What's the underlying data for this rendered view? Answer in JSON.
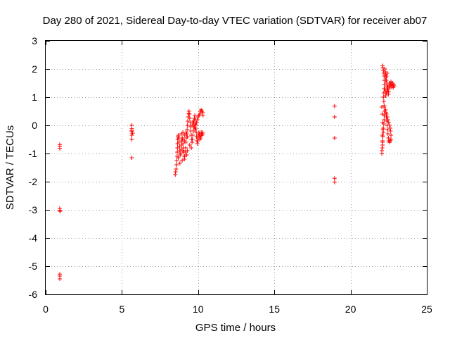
{
  "chart_data": {
    "type": "scatter",
    "title": "Day 280 of 2021, Sidereal Day-to-day VTEC variation (SDTVAR) for receiver ab07",
    "xlabel": "GPS time / hours",
    "ylabel": "SDTVAR / TECUs",
    "xlim": [
      0,
      25
    ],
    "ylim": [
      -6,
      3
    ],
    "xticks": [
      0,
      5,
      10,
      15,
      20,
      25
    ],
    "yticks": [
      -6,
      -5,
      -4,
      -3,
      -2,
      -1,
      0,
      1,
      2,
      3
    ],
    "xtick_labels": [
      "0",
      "5",
      "10",
      "15",
      "20",
      "25"
    ],
    "ytick_labels": [
      "-6",
      "-5",
      "-4",
      "-3",
      "-2",
      "-1",
      "0",
      "1",
      "2",
      "3"
    ],
    "grid": true,
    "marker": "+",
    "color": "#ff0000",
    "series": [
      {
        "name": "SDTVAR",
        "points": [
          [
            0.92,
            -0.68
          ],
          [
            0.92,
            -0.75
          ],
          [
            0.92,
            -0.82
          ],
          [
            0.92,
            -2.95
          ],
          [
            0.92,
            -3.02
          ],
          [
            0.95,
            -3.05
          ],
          [
            0.92,
            -5.28
          ],
          [
            0.92,
            -5.35
          ],
          [
            0.92,
            -5.45
          ],
          [
            5.65,
            0.0
          ],
          [
            5.65,
            -0.12
          ],
          [
            5.65,
            -0.18
          ],
          [
            5.65,
            -0.22
          ],
          [
            5.7,
            -0.28
          ],
          [
            5.65,
            -0.35
          ],
          [
            5.65,
            -0.5
          ],
          [
            5.65,
            -1.15
          ],
          [
            8.5,
            -1.75
          ],
          [
            8.52,
            -1.65
          ],
          [
            8.55,
            -1.55
          ],
          [
            8.58,
            -1.4
          ],
          [
            8.6,
            -1.25
          ],
          [
            8.62,
            -1.1
          ],
          [
            8.63,
            -0.95
          ],
          [
            8.64,
            -0.8
          ],
          [
            8.65,
            -0.65
          ],
          [
            8.66,
            -0.5
          ],
          [
            8.68,
            -0.4
          ],
          [
            8.7,
            -0.35
          ],
          [
            8.72,
            -0.45
          ],
          [
            8.75,
            -0.6
          ],
          [
            8.78,
            -0.75
          ],
          [
            8.8,
            -0.9
          ],
          [
            8.82,
            -1.05
          ],
          [
            8.85,
            -1.0
          ],
          [
            8.88,
            -0.85
          ],
          [
            8.9,
            -0.7
          ],
          [
            8.92,
            -0.55
          ],
          [
            8.95,
            -0.45
          ],
          [
            8.98,
            -0.5
          ],
          [
            9.0,
            -0.65
          ],
          [
            9.02,
            -0.8
          ],
          [
            9.05,
            -0.95
          ],
          [
            9.08,
            -1.1
          ],
          [
            9.1,
            -1.2
          ],
          [
            9.12,
            -1.1
          ],
          [
            9.15,
            -0.95
          ],
          [
            9.18,
            -0.8
          ],
          [
            9.2,
            -0.6
          ],
          [
            9.22,
            -0.45
          ],
          [
            9.25,
            -0.3
          ],
          [
            9.28,
            -0.15
          ],
          [
            9.3,
            0.0
          ],
          [
            9.32,
            0.15
          ],
          [
            9.35,
            0.3
          ],
          [
            9.38,
            0.42
          ],
          [
            9.4,
            0.5
          ],
          [
            9.42,
            0.4
          ],
          [
            9.45,
            0.25
          ],
          [
            9.48,
            0.1
          ],
          [
            9.5,
            -0.05
          ],
          [
            9.52,
            -0.2
          ],
          [
            9.55,
            -0.35
          ],
          [
            9.58,
            -0.5
          ],
          [
            9.6,
            -0.6
          ],
          [
            9.62,
            -0.5
          ],
          [
            9.65,
            -0.35
          ],
          [
            9.68,
            -0.2
          ],
          [
            9.7,
            -0.05
          ],
          [
            9.72,
            0.1
          ],
          [
            9.75,
            0.25
          ],
          [
            9.78,
            0.35
          ],
          [
            9.8,
            0.2
          ],
          [
            9.82,
            0.05
          ],
          [
            9.85,
            -0.1
          ],
          [
            9.88,
            -0.25
          ],
          [
            9.9,
            -0.4
          ],
          [
            9.92,
            -0.55
          ],
          [
            9.95,
            -0.65
          ],
          [
            9.98,
            -0.55
          ],
          [
            10.0,
            -0.45
          ],
          [
            10.02,
            -0.35
          ],
          [
            10.05,
            -0.25
          ],
          [
            10.08,
            -0.3
          ],
          [
            10.1,
            -0.4
          ],
          [
            10.12,
            -0.5
          ],
          [
            10.15,
            -0.45
          ],
          [
            10.18,
            -0.35
          ],
          [
            10.2,
            -0.25
          ],
          [
            10.22,
            -0.3
          ],
          [
            10.25,
            -0.35
          ],
          [
            10.28,
            -0.25
          ],
          [
            10.3,
            -0.3
          ],
          [
            9.6,
            0.0
          ],
          [
            9.65,
            0.1
          ],
          [
            9.7,
            0.15
          ],
          [
            9.75,
            -0.05
          ],
          [
            9.8,
            -0.15
          ],
          [
            9.85,
            0.0
          ],
          [
            9.9,
            0.1
          ],
          [
            9.95,
            0.2
          ],
          [
            10.0,
            0.3
          ],
          [
            10.05,
            0.35
          ],
          [
            10.1,
            0.4
          ],
          [
            10.15,
            0.5
          ],
          [
            10.2,
            0.55
          ],
          [
            10.25,
            0.5
          ],
          [
            10.3,
            0.45
          ],
          [
            10.32,
            0.35
          ],
          [
            8.9,
            -0.3
          ],
          [
            9.0,
            -0.25
          ],
          [
            9.1,
            -0.35
          ],
          [
            9.2,
            -0.25
          ],
          [
            9.3,
            -0.4
          ],
          [
            9.1,
            -0.55
          ],
          [
            9.0,
            -0.9
          ],
          [
            8.95,
            -1.25
          ],
          [
            8.8,
            -1.35
          ],
          [
            8.7,
            -1.15
          ],
          [
            9.25,
            -1.05
          ],
          [
            9.3,
            -0.9
          ],
          [
            9.45,
            -0.7
          ],
          [
            9.55,
            -0.8
          ],
          [
            18.95,
            0.68
          ],
          [
            18.95,
            0.3
          ],
          [
            18.95,
            -0.45
          ],
          [
            18.95,
            -1.88
          ],
          [
            18.95,
            -2.02
          ],
          [
            22.05,
            -1.0
          ],
          [
            22.05,
            -0.9
          ],
          [
            22.08,
            -0.8
          ],
          [
            22.1,
            -0.7
          ],
          [
            22.1,
            -0.55
          ],
          [
            22.12,
            -0.4
          ],
          [
            22.15,
            -0.25
          ],
          [
            22.15,
            -0.1
          ],
          [
            22.18,
            0.05
          ],
          [
            22.2,
            0.2
          ],
          [
            22.2,
            0.35
          ],
          [
            22.22,
            0.5
          ],
          [
            22.2,
            0.65
          ],
          [
            22.05,
            0.65
          ],
          [
            22.08,
            0.4
          ],
          [
            22.1,
            0.1
          ],
          [
            22.12,
            -0.15
          ],
          [
            22.08,
            -0.35
          ],
          [
            22.1,
            -0.6
          ],
          [
            22.1,
            2.12
          ],
          [
            22.12,
            2.05
          ],
          [
            22.15,
            1.95
          ],
          [
            22.18,
            1.85
          ],
          [
            22.2,
            1.75
          ],
          [
            22.2,
            1.6
          ],
          [
            22.22,
            1.45
          ],
          [
            22.2,
            1.3
          ],
          [
            22.18,
            1.15
          ],
          [
            22.15,
            1.0
          ],
          [
            22.18,
            0.85
          ],
          [
            22.2,
            0.7
          ],
          [
            22.25,
            2.0
          ],
          [
            22.28,
            1.9
          ],
          [
            22.3,
            1.8
          ],
          [
            22.32,
            1.7
          ],
          [
            22.35,
            1.6
          ],
          [
            22.38,
            1.5
          ],
          [
            22.4,
            1.4
          ],
          [
            22.42,
            1.3
          ],
          [
            22.45,
            1.2
          ],
          [
            22.48,
            1.1
          ],
          [
            22.5,
            1.2
          ],
          [
            22.52,
            1.35
          ],
          [
            22.55,
            1.5
          ],
          [
            22.58,
            1.45
          ],
          [
            22.6,
            1.35
          ],
          [
            22.62,
            1.45
          ],
          [
            22.65,
            1.55
          ],
          [
            22.68,
            1.45
          ],
          [
            22.7,
            1.35
          ],
          [
            22.72,
            1.4
          ],
          [
            22.75,
            1.5
          ],
          [
            22.78,
            1.4
          ],
          [
            22.8,
            1.35
          ],
          [
            22.82,
            1.45
          ],
          [
            22.85,
            1.4
          ],
          [
            22.3,
            0.55
          ],
          [
            22.32,
            0.45
          ],
          [
            22.35,
            0.3
          ],
          [
            22.38,
            0.15
          ],
          [
            22.4,
            0.0
          ],
          [
            22.42,
            -0.15
          ],
          [
            22.45,
            -0.3
          ],
          [
            22.48,
            -0.45
          ],
          [
            22.5,
            -0.55
          ],
          [
            22.55,
            -0.6
          ],
          [
            22.6,
            -0.55
          ],
          [
            22.65,
            -0.5
          ],
          [
            22.35,
            0.4
          ],
          [
            22.4,
            0.3
          ],
          [
            22.45,
            0.2
          ],
          [
            22.5,
            0.1
          ],
          [
            22.55,
            0.0
          ],
          [
            22.6,
            -0.1
          ],
          [
            22.62,
            -0.2
          ],
          [
            22.65,
            -0.35
          ],
          [
            22.25,
            1.3
          ],
          [
            22.28,
            1.2
          ],
          [
            22.3,
            1.05
          ],
          [
            22.35,
            1.15
          ],
          [
            22.4,
            1.25
          ],
          [
            22.45,
            1.35
          ],
          [
            22.3,
            1.6
          ],
          [
            22.35,
            1.75
          ],
          [
            22.4,
            1.85
          ]
        ]
      }
    ]
  }
}
